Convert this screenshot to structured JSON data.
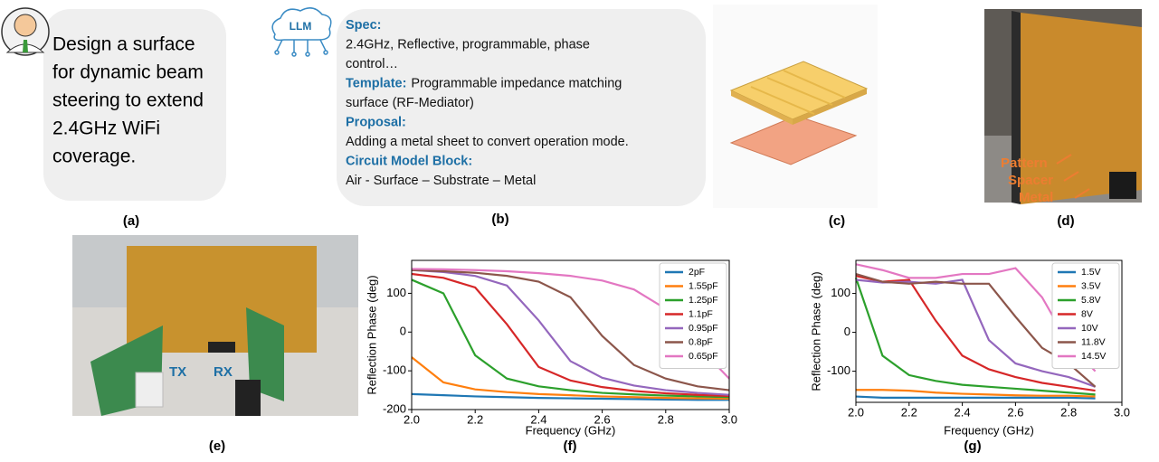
{
  "panels": {
    "a": {
      "lines": [
        "Design a surface",
        "for dynamic beam",
        "steering to extend",
        "2.4GHz WiFi",
        "coverage."
      ],
      "caption": "(a)"
    },
    "b": {
      "icon": "LLM",
      "rows": [
        {
          "bold": "Spec:"
        },
        {
          "text": "2.4GHz, Reflective, programmable, phase"
        },
        {
          "text": "control…"
        },
        {
          "bold": "Template:",
          "text": "Programmable impedance matching"
        },
        {
          "text": "surface (RF-Mediator)"
        },
        {
          "bold": "Proposal:"
        },
        {
          "text": "Adding a metal sheet to convert operation mode."
        },
        {
          "bold": "Circuit Model Block:"
        },
        {
          "text": "Air  - Surface – Substrate – Metal"
        }
      ],
      "caption": "(b)"
    },
    "c": {
      "caption": "(c)"
    },
    "d": {
      "labels": [
        "Pattern",
        "Spacer",
        "Metal"
      ],
      "caption": "(d)"
    },
    "e": {
      "labels": [
        "TX",
        "RX"
      ],
      "caption": "(e)"
    }
  },
  "chart_data": [
    {
      "type": "line",
      "caption": "(f)",
      "x_label": "Frequency (GHz)",
      "y_label": "Reflection Phase (deg)",
      "x": [
        2.0,
        2.1,
        2.2,
        2.3,
        2.4,
        2.5,
        2.6,
        2.7,
        2.8,
        2.9,
        3.0
      ],
      "xlim": [
        2.0,
        3.0
      ],
      "ylim": [
        -200,
        185
      ],
      "xticks": [
        {
          "value": 2.0,
          "label": "2.0"
        },
        2.2,
        2.4,
        2.6,
        2.8,
        {
          "value": 3.0,
          "label": "3.0"
        }
      ],
      "yticks": [
        -200,
        -100,
        0,
        100
      ],
      "legend": "upper right",
      "series": [
        {
          "name": "2pF",
          "color": "#1f77b4",
          "values": [
            -160,
            -163,
            -166,
            -168,
            -170,
            -171,
            -172,
            -173,
            -174,
            -175,
            -175
          ]
        },
        {
          "name": "1.55pF",
          "color": "#ff7f0e",
          "values": [
            -65,
            -130,
            -148,
            -155,
            -160,
            -163,
            -166,
            -168,
            -170,
            -171,
            -172
          ]
        },
        {
          "name": "1.25pF",
          "color": "#2ca02c",
          "values": [
            135,
            100,
            -60,
            -120,
            -140,
            -150,
            -157,
            -161,
            -164,
            -166,
            -168
          ]
        },
        {
          "name": "1.1pF",
          "color": "#d62728",
          "values": [
            150,
            140,
            115,
            20,
            -90,
            -125,
            -142,
            -152,
            -158,
            -162,
            -165
          ]
        },
        {
          "name": "0.95pF",
          "color": "#9467bd",
          "values": [
            160,
            155,
            145,
            120,
            30,
            -75,
            -118,
            -138,
            -150,
            -157,
            -162
          ]
        },
        {
          "name": "0.8pF",
          "color": "#8c564b",
          "values": [
            160,
            157,
            153,
            145,
            130,
            90,
            -10,
            -85,
            -120,
            -140,
            -150
          ]
        },
        {
          "name": "0.65pF",
          "color": "#e377c2",
          "values": [
            163,
            162,
            160,
            157,
            152,
            145,
            133,
            110,
            60,
            -35,
            -120
          ]
        }
      ]
    },
    {
      "type": "line",
      "caption": "(g)",
      "x_label": "Frequency (GHz)",
      "y_label": "Reflection Phase (deg)",
      "x": [
        2.0,
        2.1,
        2.2,
        2.3,
        2.4,
        2.5,
        2.6,
        2.7,
        2.8,
        2.9
      ],
      "xlim": [
        2.0,
        3.0
      ],
      "ylim": [
        -180,
        185
      ],
      "xticks": [
        {
          "value": 2.0,
          "label": "2.0"
        },
        2.2,
        2.4,
        2.6,
        2.8,
        {
          "value": 3.0,
          "label": "3.0"
        }
      ],
      "yticks": [
        -100,
        0,
        100
      ],
      "legend": "upper right",
      "series": [
        {
          "name": "1.5V",
          "color": "#1f77b4",
          "values": [
            -165,
            -168,
            -168,
            -168,
            -168,
            -168,
            -168,
            -168,
            -168,
            -170
          ]
        },
        {
          "name": "3.5V",
          "color": "#ff7f0e",
          "values": [
            -148,
            -148,
            -150,
            -155,
            -158,
            -160,
            -162,
            -163,
            -163,
            -165
          ]
        },
        {
          "name": "5.8V",
          "color": "#2ca02c",
          "values": [
            140,
            -60,
            -110,
            -125,
            -135,
            -140,
            -145,
            -150,
            -155,
            -160
          ]
        },
        {
          "name": "8V",
          "color": "#d62728",
          "values": [
            145,
            130,
            135,
            30,
            -60,
            -95,
            -115,
            -130,
            -140,
            -150
          ]
        },
        {
          "name": "10V",
          "color": "#9467bd",
          "values": [
            135,
            128,
            130,
            125,
            135,
            -20,
            -80,
            -100,
            -115,
            -140
          ]
        },
        {
          "name": "11.8V",
          "color": "#8c564b",
          "values": [
            150,
            130,
            125,
            130,
            125,
            125,
            40,
            -40,
            -80,
            -140
          ]
        },
        {
          "name": "14.5V",
          "color": "#e377c2",
          "values": [
            175,
            160,
            140,
            140,
            150,
            150,
            165,
            90,
            -30,
            -100
          ]
        }
      ]
    }
  ]
}
